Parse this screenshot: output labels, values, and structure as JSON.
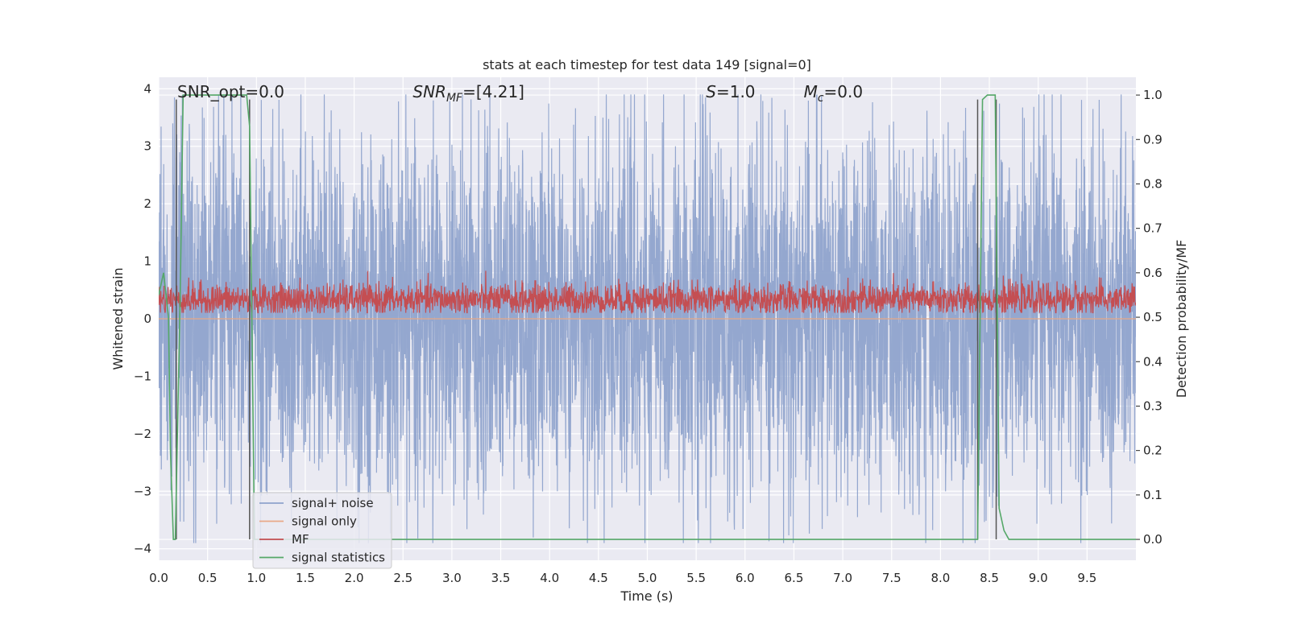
{
  "chart_data": {
    "type": "line",
    "title": "stats at each timestep for test data 149 [signal=0]",
    "xlabel": "Time (s)",
    "ylabel": "Whitened strain",
    "ylabel_right": "Detection probability/MF",
    "xlim": [
      0,
      10
    ],
    "ylim": [
      -4.2,
      4.2
    ],
    "ylim_right": [
      -0.047,
      1.04
    ],
    "xticks": [
      0.0,
      0.5,
      1.0,
      1.5,
      2.0,
      2.5,
      3.0,
      3.5,
      4.0,
      4.5,
      5.0,
      5.5,
      6.0,
      6.5,
      7.0,
      7.5,
      8.0,
      8.5,
      9.0,
      9.5
    ],
    "xtick_labels": [
      "0.0",
      "0.5",
      "1.0",
      "1.5",
      "2.0",
      "2.5",
      "3.0",
      "3.5",
      "4.0",
      "4.5",
      "5.0",
      "5.5",
      "6.0",
      "6.5",
      "7.0",
      "7.5",
      "8.0",
      "8.5",
      "9.0",
      "9.5"
    ],
    "yticks": [
      -4,
      -3,
      -2,
      -1,
      0,
      1,
      2,
      3,
      4
    ],
    "ytick_labels": [
      "−4",
      "−3",
      "−2",
      "−1",
      "0",
      "1",
      "2",
      "3",
      "4"
    ],
    "yticks_right": [
      0.0,
      0.1,
      0.2,
      0.3,
      0.4,
      0.5,
      0.6,
      0.7,
      0.8,
      0.9,
      1.0
    ],
    "ytick_labels_right": [
      "0.0",
      "0.1",
      "0.2",
      "0.3",
      "0.4",
      "0.5",
      "0.6",
      "0.7",
      "0.8",
      "0.9",
      "1.0"
    ],
    "grid": true,
    "legend_position": "lower-left",
    "annotations": [
      {
        "name": "snr-opt",
        "label": "SNR_opt",
        "value": "=0.0",
        "x": 0.19
      },
      {
        "name": "snr-mf",
        "label": "SNR",
        "sub": "MF",
        "value": "=[4.21]",
        "x": 2.6
      },
      {
        "name": "s",
        "label": "S",
        "value": "=1.0",
        "x": 5.6
      },
      {
        "name": "mc",
        "label": "M",
        "sub": "c",
        "value": "=0.0",
        "x": 6.6
      }
    ],
    "vertical_lines": [
      0.18,
      0.93,
      8.38,
      8.57
    ],
    "series": [
      {
        "name": "signal+ noise",
        "color": "#8fa3cc",
        "axis": "left",
        "description": "noise band, core about ±1.6, spikes up to ±3.9",
        "x_range": [
          0,
          10
        ],
        "core_amplitude": 1.6,
        "peak_amplitude": 3.9
      },
      {
        "name": "signal only",
        "color": "#e8a888",
        "axis": "left",
        "x": [
          0,
          10
        ],
        "y": [
          0,
          0
        ]
      },
      {
        "name": "MF",
        "color": "#c44e52",
        "axis": "right",
        "x_range": [
          0,
          10
        ],
        "mean": 0.54,
        "range": [
          0.51,
          0.62
        ]
      },
      {
        "name": "signal statistics",
        "color": "#55a868",
        "axis": "right",
        "x": [
          0.0,
          0.05,
          0.1,
          0.12,
          0.15,
          0.17,
          0.22,
          0.25,
          0.9,
          0.93,
          0.98,
          1.0,
          8.38,
          8.43,
          8.48,
          8.56,
          8.6,
          8.65,
          8.7,
          10.0
        ],
        "y": [
          0.55,
          0.6,
          0.5,
          0.2,
          0.0,
          0.0,
          0.55,
          1.0,
          1.0,
          0.93,
          0.0,
          0.0,
          0.0,
          0.99,
          1.0,
          1.0,
          0.07,
          0.02,
          0.0,
          0.0
        ]
      }
    ]
  }
}
